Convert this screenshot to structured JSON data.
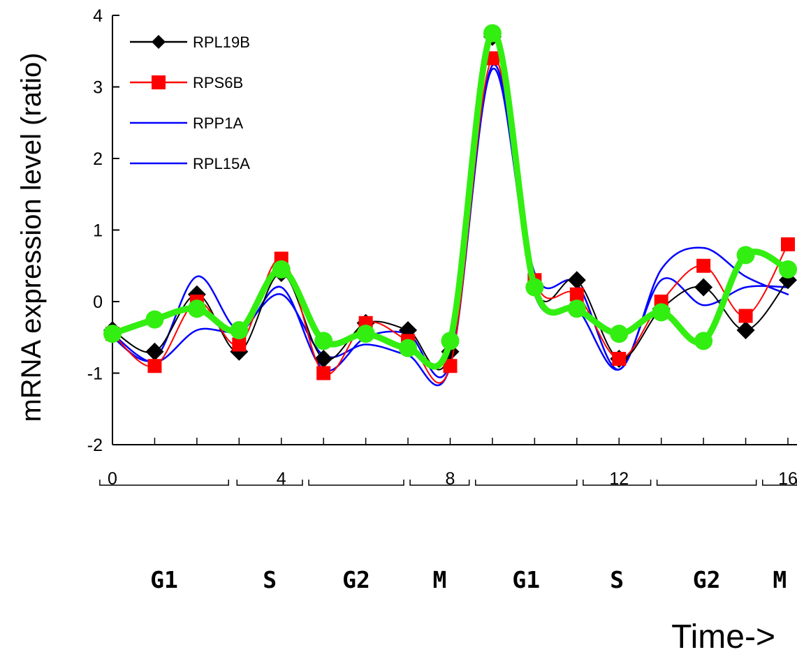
{
  "chart_data": {
    "type": "line",
    "title": "",
    "xlabel": "Time->",
    "ylabel": "mRNA expression level (ratio)",
    "xlim": [
      0,
      16
    ],
    "ylim": [
      -2,
      4
    ],
    "xticks": [
      "0",
      "4",
      "8",
      "12",
      "16"
    ],
    "yticks": [
      "4",
      "3",
      "2",
      "1",
      "0",
      "-1",
      "-2"
    ],
    "grid": false,
    "legend": "top-left",
    "x": [
      0,
      1,
      2,
      3,
      4,
      5,
      6,
      7,
      8,
      9,
      10,
      11,
      12,
      13,
      14,
      15,
      16
    ],
    "series": [
      {
        "name": "RPL19B",
        "color": "#000000",
        "marker": "diamond",
        "values": [
          -0.4,
          -0.7,
          0.1,
          -0.7,
          0.4,
          -0.8,
          -0.3,
          -0.4,
          -0.7,
          3.7,
          0.2,
          0.3,
          -0.8,
          -0.1,
          0.2,
          -0.4,
          0.3
        ]
      },
      {
        "name": "RPS6B",
        "color": "#ff0000",
        "marker": "square",
        "values": [
          -0.45,
          -0.9,
          0.0,
          -0.6,
          0.6,
          -1.0,
          -0.3,
          -0.55,
          -0.9,
          3.4,
          0.3,
          0.1,
          -0.8,
          0.0,
          0.5,
          -0.2,
          0.8
        ]
      },
      {
        "name": "RPP1A",
        "color": "#0000ff",
        "marker": "none",
        "values": [
          -0.5,
          -0.8,
          0.35,
          -0.4,
          0.2,
          -0.95,
          -0.5,
          -0.45,
          -0.85,
          3.3,
          0.4,
          0.25,
          -0.95,
          0.45,
          0.75,
          0.35,
          0.1
        ]
      },
      {
        "name": "RPL15A",
        "color": "#0000ff",
        "marker": "none",
        "values": [
          -0.45,
          -0.85,
          -0.4,
          -0.4,
          0.1,
          -0.75,
          -0.6,
          -0.75,
          -0.9,
          3.25,
          0.1,
          -0.1,
          -0.95,
          0.3,
          -0.05,
          0.2,
          0.2
        ]
      },
      {
        "name": "",
        "color": "#33ee11",
        "marker": "circle",
        "values": [
          -0.45,
          -0.25,
          -0.1,
          -0.4,
          0.45,
          -0.55,
          -0.45,
          -0.65,
          -0.55,
          3.75,
          0.2,
          -0.1,
          -0.45,
          -0.15,
          -0.55,
          0.65,
          0.45
        ]
      }
    ],
    "legend_entries": [
      "RPL19B",
      "RPS6B",
      "RPP1A",
      "RPL15A"
    ],
    "phases": [
      {
        "label": "G1",
        "start": -0.3,
        "end": 2.75
      },
      {
        "label": "S",
        "start": 2.95,
        "end": 4.5
      },
      {
        "label": "G2",
        "start": 4.65,
        "end": 6.9
      },
      {
        "label": "M",
        "start": 7.05,
        "end": 8.45
      },
      {
        "label": "G1",
        "start": 8.6,
        "end": 11.0
      },
      {
        "label": "S",
        "start": 11.15,
        "end": 12.75
      },
      {
        "label": "G2",
        "start": 12.9,
        "end": 15.25
      },
      {
        "label": "M",
        "start": 15.4,
        "end": 16.3
      }
    ]
  }
}
